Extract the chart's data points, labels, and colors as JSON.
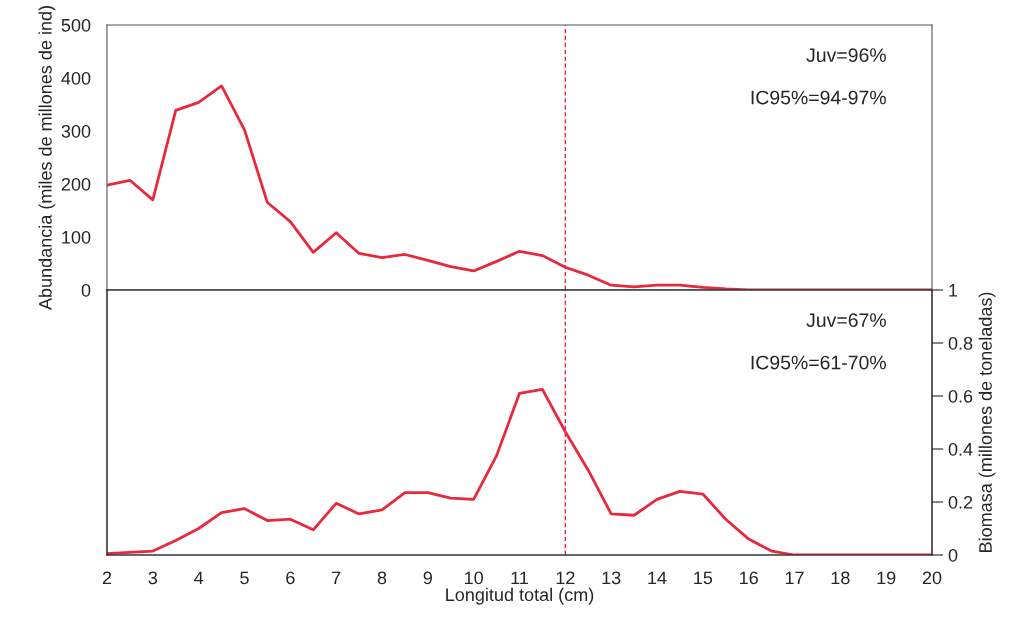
{
  "chart_data": [
    {
      "type": "line",
      "ylabel": "Abundancia (miles de millones de ind)",
      "xlim": [
        2,
        20
      ],
      "xticks": [
        2,
        3,
        4,
        5,
        6,
        7,
        8,
        9,
        10,
        11,
        12,
        13,
        14,
        15,
        16,
        17,
        18,
        19,
        20
      ],
      "ylim": [
        0,
        500
      ],
      "yticks": [
        0,
        100,
        200,
        300,
        400,
        500
      ],
      "tick_labels": "y",
      "grid": false,
      "legend": false,
      "x": [
        2,
        2.5,
        3,
        3.5,
        4,
        4.5,
        5,
        5.5,
        6,
        6.5,
        7,
        7.5,
        8,
        8.5,
        9,
        9.5,
        10,
        10.5,
        11,
        11.5,
        12,
        12.5,
        13,
        13.5,
        14,
        14.5,
        15,
        15.5,
        16,
        16.5,
        17,
        17.5,
        18,
        18.5,
        19,
        19.5,
        20
      ],
      "series": [
        {
          "color": "#e8283c",
          "values": [
            198,
            207,
            170,
            339,
            354,
            385,
            302,
            165,
            129,
            71,
            108,
            69,
            61,
            67,
            56,
            44,
            36,
            54,
            73,
            65,
            43,
            28,
            9,
            6,
            9,
            9,
            5,
            2,
            0,
            0,
            0,
            0,
            0,
            0,
            0,
            0,
            0
          ]
        }
      ],
      "ref_lines": [
        {
          "axis": "x",
          "value": 12,
          "color": "#e8283c",
          "line_style": "dashed"
        }
      ],
      "annotations": [
        "Juv=96%",
        "IC95%=94-97%"
      ]
    },
    {
      "type": "line",
      "xlabel": "Longitud total (cm)",
      "y2label": "Biomasa (millones de toneladas)",
      "xlim": [
        2,
        20
      ],
      "xticks": [
        2,
        3,
        4,
        5,
        6,
        7,
        8,
        9,
        10,
        11,
        12,
        13,
        14,
        15,
        16,
        17,
        18,
        19,
        20
      ],
      "y2lim": [
        0,
        1
      ],
      "y2ticks": [
        0,
        0.2,
        0.4,
        0.6,
        0.8,
        1
      ],
      "grid": false,
      "legend": false,
      "x": [
        2,
        2.5,
        3,
        3.5,
        4,
        4.5,
        5,
        5.5,
        6,
        6.5,
        7,
        7.5,
        8,
        8.5,
        9,
        9.5,
        10,
        10.5,
        11,
        11.5,
        12,
        12.5,
        13,
        13.5,
        14,
        14.5,
        15,
        15.5,
        16,
        16.5,
        17,
        17.5,
        18,
        18.5,
        19,
        19.5,
        20
      ],
      "series": [
        {
          "color": "#e8283c",
          "axis": "y2",
          "values": [
            0.005,
            0.01,
            0.015,
            0.055,
            0.1,
            0.16,
            0.175,
            0.13,
            0.135,
            0.095,
            0.195,
            0.155,
            0.17,
            0.235,
            0.235,
            0.215,
            0.21,
            0.375,
            0.61,
            0.625,
            0.465,
            0.32,
            0.155,
            0.15,
            0.21,
            0.24,
            0.23,
            0.135,
            0.06,
            0.015,
            0,
            0,
            0,
            0,
            0,
            0,
            0
          ]
        }
      ],
      "ref_lines": [
        {
          "axis": "x",
          "value": 12,
          "color": "#e8283c",
          "line_style": "dashed"
        }
      ],
      "annotations": [
        "Juv=67%",
        "IC95%=61-70%"
      ]
    }
  ]
}
